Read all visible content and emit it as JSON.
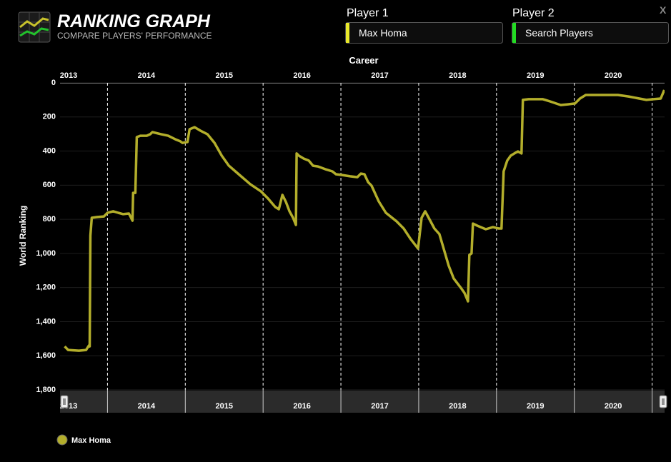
{
  "header": {
    "title": "RANKING GRAPH",
    "subtitle": "COMPARE PLAYERS' PERFORMANCE",
    "close": "X"
  },
  "player1": {
    "label": "Player 1",
    "value": "Max Homa"
  },
  "player2": {
    "label": "Player 2",
    "placeholder": "Search Players"
  },
  "chart_data": {
    "type": "line",
    "title": "Career",
    "y_label": "World Ranking",
    "inverted_y": true,
    "grid": true,
    "legend": "bottom-left",
    "x": [
      2013.45,
      2013.495,
      2013.633,
      2013.725,
      2013.761,
      2013.771,
      2013.78,
      2013.798,
      2013.862,
      2013.954,
      2014.0,
      2014.073,
      2014.138,
      2014.202,
      2014.275,
      2014.321,
      2014.33,
      2014.358,
      2014.376,
      2014.422,
      2014.505,
      2014.55,
      2014.578,
      2014.688,
      2014.78,
      2014.872,
      2014.936,
      2014.963,
      2015.028,
      2015.055,
      2015.119,
      2015.193,
      2015.284,
      2015.376,
      2015.468,
      2015.56,
      2015.697,
      2015.835,
      2015.972,
      2016.064,
      2016.156,
      2016.202,
      2016.248,
      2016.294,
      2016.339,
      2016.385,
      2016.422,
      2016.431,
      2016.459,
      2016.523,
      2016.587,
      2016.642,
      2016.706,
      2016.798,
      2016.89,
      2016.936,
      2017.009,
      2017.119,
      2017.211,
      2017.257,
      2017.303,
      2017.349,
      2017.394,
      2017.486,
      2017.578,
      2017.716,
      2017.807,
      2017.899,
      2017.991,
      2018.037,
      2018.083,
      2018.128,
      2018.202,
      2018.266,
      2018.312,
      2018.385,
      2018.45,
      2018.541,
      2018.587,
      2018.633,
      2018.651,
      2018.679,
      2018.697,
      2018.752,
      2018.798,
      2018.862,
      2018.954,
      2019.028,
      2019.064,
      2019.092,
      2019.138,
      2019.183,
      2019.229,
      2019.275,
      2019.321,
      2019.339,
      2019.413,
      2019.596,
      2019.688,
      2019.826,
      2019.917,
      2020.009,
      2020.073,
      2020.147,
      2020.33,
      2020.56,
      2020.697,
      2020.835,
      2020.927,
      2021.018,
      2021.11,
      2021.156
    ],
    "series": [
      {
        "name": "Max Homa",
        "color": "#b3ae2b",
        "values": [
          1545,
          1566,
          1570,
          1566,
          1540,
          1545,
          896,
          791,
          787,
          783,
          762,
          753,
          762,
          770,
          766,
          808,
          645,
          645,
          318,
          310,
          310,
          301,
          289,
          301,
          310,
          331,
          343,
          352,
          347,
          272,
          260,
          280,
          301,
          352,
          427,
          486,
          540,
          594,
          636,
          678,
          728,
          741,
          657,
          699,
          753,
          791,
          833,
          414,
          427,
          444,
          456,
          486,
          490,
          506,
          519,
          536,
          540,
          548,
          553,
          532,
          536,
          582,
          603,
          695,
          762,
          812,
          854,
          917,
          971,
          791,
          753,
          791,
          854,
          887,
          958,
          1072,
          1147,
          1201,
          1231,
          1281,
          1009,
          1000,
          825,
          837,
          846,
          858,
          846,
          854,
          854,
          519,
          456,
          427,
          414,
          402,
          414,
          100,
          96,
          96,
          109,
          130,
          126,
          121,
          92,
          71,
          71,
          71,
          80,
          92,
          100,
          96,
          92,
          42
        ]
      }
    ],
    "xlim": [
      2013.39,
      2021.16
    ],
    "xticks": [
      {
        "value": 2013.5,
        "label": "2013"
      },
      {
        "value": 2014.5,
        "label": "2014"
      },
      {
        "value": 2015.5,
        "label": "2015"
      },
      {
        "value": 2016.5,
        "label": "2016"
      },
      {
        "value": 2017.5,
        "label": "2017"
      },
      {
        "value": 2018.5,
        "label": "2018"
      },
      {
        "value": 2019.5,
        "label": "2019"
      },
      {
        "value": 2020.5,
        "label": "2020"
      }
    ],
    "xgrid": [
      2014,
      2015,
      2016,
      2017,
      2018,
      2019,
      2020,
      2021
    ],
    "ylim": [
      0,
      1800
    ],
    "yticks": [
      0,
      200,
      400,
      600,
      800,
      {
        "value": 1000,
        "label": "1,000"
      },
      {
        "value": 1200,
        "label": "1,200"
      },
      {
        "value": 1400,
        "label": "1,400"
      },
      {
        "value": 1600,
        "label": "1,600"
      },
      {
        "value": 1800,
        "label": "1,800"
      }
    ]
  }
}
